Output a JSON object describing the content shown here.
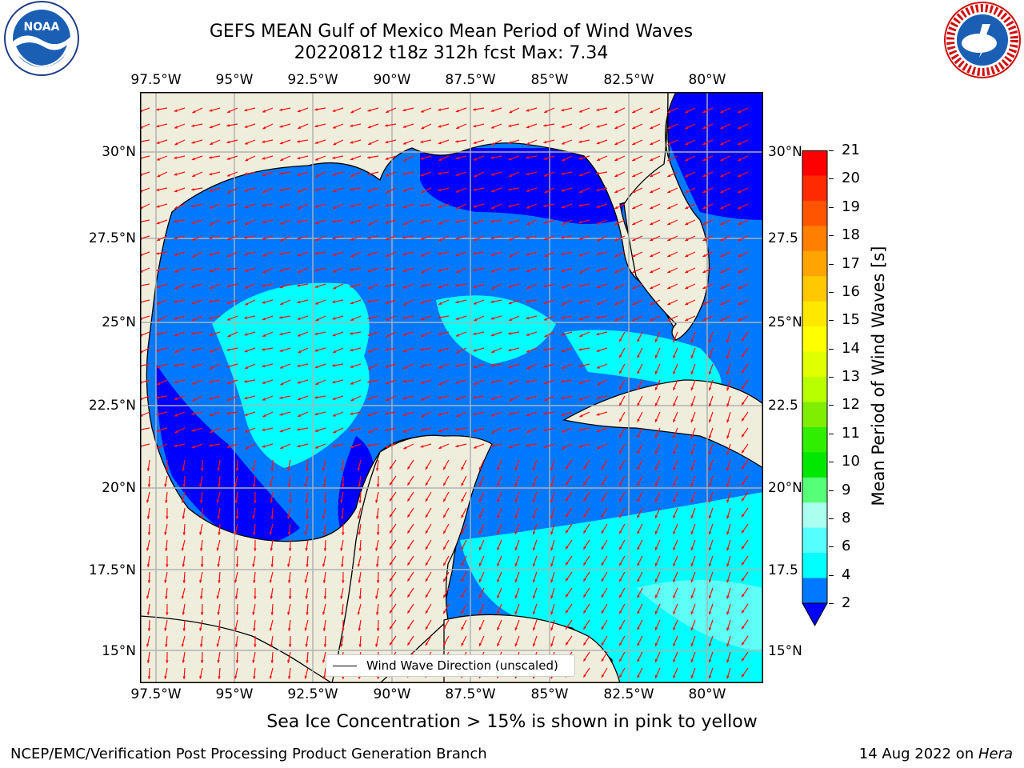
{
  "header": {
    "title_line1": "GEFS MEAN Gulf of Mexico Mean Period of Wind Waves",
    "title_line2": "20220812 t18z 312h fcst   Max: 7.34"
  },
  "logos": {
    "left": "NOAA",
    "right": "NATIONAL WEATHER SERVICE"
  },
  "map": {
    "lon_labels": [
      "97.5°W",
      "95°W",
      "92.5°W",
      "90°W",
      "87.5°W",
      "85°W",
      "82.5°W",
      "80°W"
    ],
    "lat_labels_left": [
      "30°N",
      "27.5°N",
      "25°N",
      "22.5°N",
      "20°N",
      "17.5°N",
      "15°N"
    ],
    "lat_labels_right": [
      "30°N",
      "27.5",
      "25°N",
      "22.5",
      "20°N",
      "17.5",
      "15°N"
    ],
    "legend_text": "Wind Wave Direction (unscaled)"
  },
  "colorbar": {
    "label": "Mean Period of Wind Waves [s]",
    "ticks": [
      "21",
      "20",
      "19",
      "18",
      "17",
      "16",
      "15",
      "14",
      "13",
      "12",
      "11",
      "10",
      "9",
      "8",
      "6",
      "4",
      "2"
    ],
    "colors": [
      "#ff0000",
      "#ff2a00",
      "#ff5500",
      "#ff7f00",
      "#ffa400",
      "#ffc800",
      "#ffe800",
      "#ffff00",
      "#e0ff00",
      "#b8ff00",
      "#80ee00",
      "#30ee00",
      "#00e800",
      "#55ff77",
      "#aaffee",
      "#55ffff",
      "#00ffff",
      "#0078ff",
      "#0000ff"
    ]
  },
  "note": "Sea Ice Concentration > 15% is shown in pink to yellow",
  "footer": {
    "left": "NCEP/EMC/Verification Post Processing Product Generation Branch",
    "right_prefix": "14 Aug 2022 on ",
    "right_host": "Hera"
  }
}
